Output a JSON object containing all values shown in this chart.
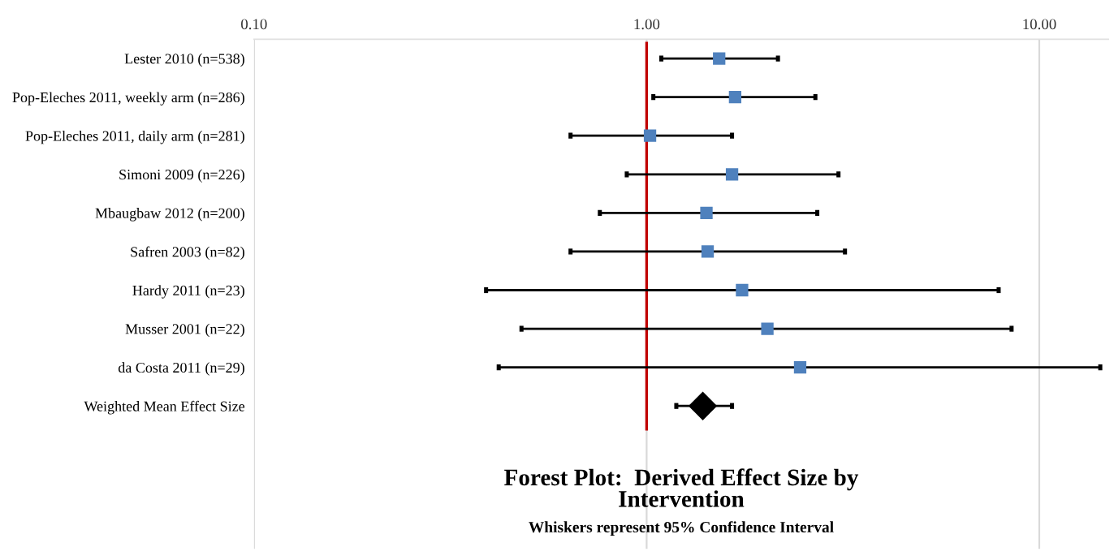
{
  "chart_data": {
    "type": "scatter",
    "orientation": "horizontal",
    "title": "Forest Plot:  Derived Effect Size by\nIntervention",
    "subtitle": "Whiskers represent 95% Confidence Interval",
    "categories": [
      "Lester 2010 (n=538)",
      "Pop-Eleches 2011, weekly arm (n=286)",
      "Pop-Eleches 2011, daily arm (n=281)",
      "Simoni 2009 (n=226)",
      "Mbaugbaw 2012 (n=200)",
      "Safren 2003 (n=82)",
      "Hardy 2011 (n=23)",
      "Musser 2001 (n=22)",
      "da Costa 2011 (n=29)",
      "Weighted Mean Effect Size"
    ],
    "series": [
      {
        "color": "#4f81bd",
        "marker": "square",
        "values": [
          1.53,
          1.68,
          1.02,
          1.65,
          1.42,
          1.43,
          1.75,
          2.03,
          2.46,
          null
        ],
        "errors": [
          [
            1.09,
            2.16
          ],
          [
            1.04,
            2.69
          ],
          [
            0.64,
            1.65
          ],
          [
            0.89,
            3.08
          ],
          [
            0.76,
            2.72
          ],
          [
            0.64,
            3.2
          ],
          [
            0.39,
            7.88
          ],
          [
            0.48,
            8.5
          ],
          [
            0.42,
            14.3
          ],
          null
        ]
      },
      {
        "color": "#000000",
        "marker": "diamond",
        "values": [
          null,
          null,
          null,
          null,
          null,
          null,
          null,
          null,
          null,
          1.39
        ],
        "errors": [
          null,
          null,
          null,
          null,
          null,
          null,
          null,
          null,
          null,
          [
            1.19,
            1.65
          ]
        ]
      }
    ],
    "log": "x",
    "xlim": [
      0.1,
      15
    ],
    "xticks": [
      {
        "value": 0.1,
        "label": "0.10"
      },
      {
        "value": 1,
        "label": "1.00"
      },
      {
        "value": 10,
        "label": "10.00"
      }
    ],
    "ref_lines": [
      {
        "axis": "x",
        "value": 1,
        "color": "#c00000"
      }
    ],
    "grid": "x",
    "legend": false
  }
}
